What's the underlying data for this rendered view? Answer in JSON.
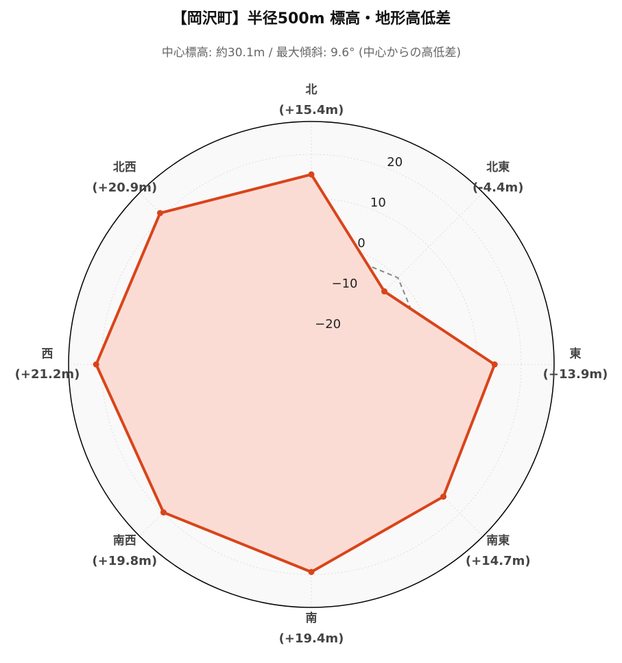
{
  "chart_data": {
    "type": "radar",
    "title": "【岡沢町】半径500m 標高・地形高低差",
    "subtitle": "中心標高: 約30.1m / 最大傾斜: 9.6°  (中心からの高低差)",
    "categories": [
      "北",
      "北東",
      "東",
      "南東",
      "南",
      "南西",
      "西",
      "北西"
    ],
    "values": [
      15.4,
      -4.4,
      13.9,
      14.7,
      19.4,
      19.8,
      21.2,
      20.9
    ],
    "value_labels": [
      "(+15.4m)",
      "(-4.4m)",
      "(+13.9m)",
      "(+14.7m)",
      "(+19.4m)",
      "(+19.8m)",
      "(+21.2m)",
      "(+20.9m)"
    ],
    "color": "#d9441a",
    "fill_color": "#fbdcd4",
    "ylim": [
      -28,
      27.5
    ],
    "yticks": [
      {
        "value": -20,
        "label": "−20"
      },
      {
        "value": -10,
        "label": "−10"
      },
      0,
      10,
      20
    ],
    "grid": true,
    "zero_line": true
  }
}
